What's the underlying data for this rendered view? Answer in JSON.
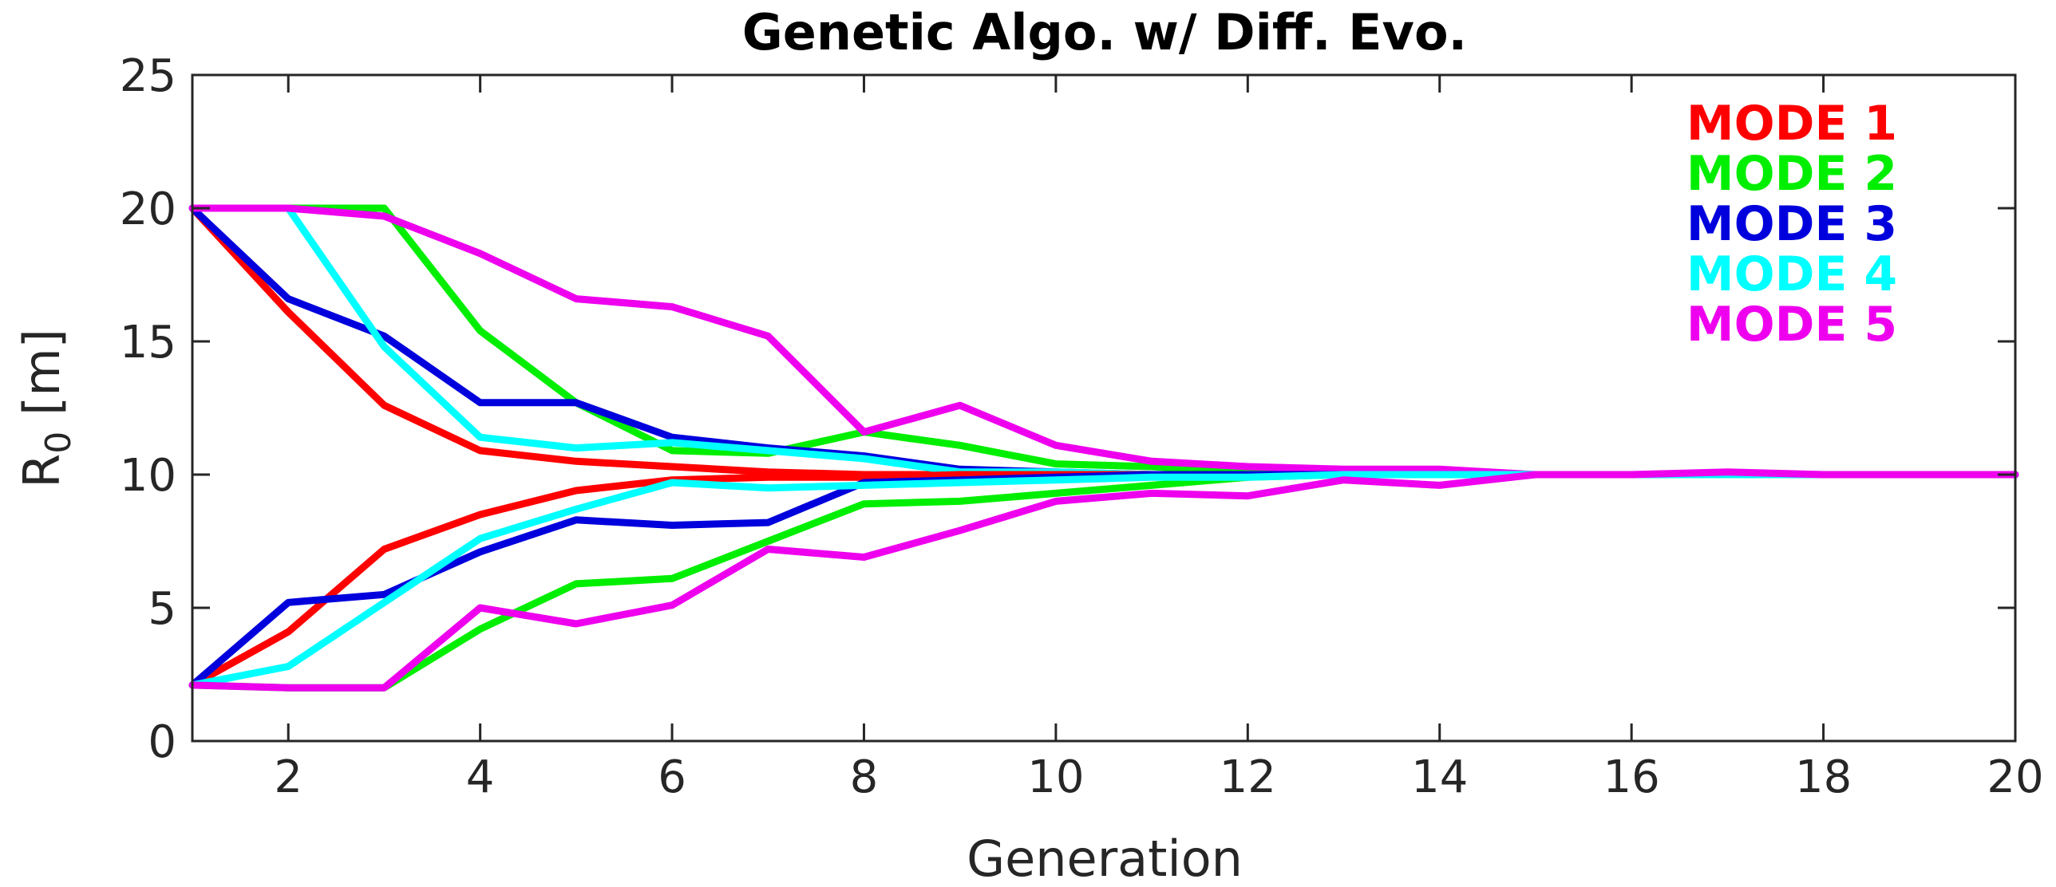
{
  "chart_data": {
    "type": "line",
    "title": "Genetic Algo. w/ Diff. Evo.",
    "xlabel": "Generation",
    "ylabel_main": "R",
    "ylabel_sub": "0",
    "ylabel_unit": " [m]",
    "xlim": [
      1,
      20
    ],
    "ylim": [
      0,
      25
    ],
    "xticks": [
      2,
      4,
      6,
      8,
      10,
      12,
      14,
      16,
      18,
      20
    ],
    "yticks": [
      0,
      5,
      10,
      15,
      20,
      25
    ],
    "grid": false,
    "legend_position": "top-right",
    "x": [
      1,
      2,
      3,
      4,
      5,
      6,
      7,
      8,
      9,
      10,
      11,
      12,
      13,
      14,
      15,
      16,
      17,
      18,
      19,
      20
    ],
    "series": [
      {
        "name": "MODE 1",
        "color": "#ff0000",
        "values": [
          20,
          16.1,
          12.6,
          10.9,
          10.5,
          10.3,
          10.1,
          10.0,
          10.0,
          10.0,
          10.0,
          10.0,
          10.0,
          10.0,
          10.0,
          10.0,
          10.0,
          10.0,
          10.0,
          10.0
        ]
      },
      {
        "name": "MODE 2",
        "color": "#00ee00",
        "values": [
          20,
          20,
          20,
          15.4,
          12.7,
          10.9,
          10.8,
          11.6,
          11.1,
          10.4,
          10.3,
          10.1,
          10.0,
          10.0,
          10.0,
          10.0,
          10.0,
          10.0,
          10.0,
          10.0
        ]
      },
      {
        "name": "MODE 3",
        "color": "#0000dd",
        "values": [
          20,
          16.6,
          15.2,
          12.7,
          12.7,
          11.4,
          11.0,
          10.7,
          10.2,
          10.1,
          10.0,
          10.0,
          10.0,
          10.0,
          10.0,
          10.0,
          10.0,
          10.0,
          10.0,
          10.0
        ]
      },
      {
        "name": "MODE 4",
        "color": "#00ffff",
        "values": [
          20,
          20,
          14.8,
          11.4,
          11.0,
          11.2,
          10.9,
          10.6,
          10.1,
          10.1,
          10.0,
          10.0,
          10.0,
          10.0,
          10.0,
          10.0,
          10.0,
          10.0,
          10.0,
          10.0
        ]
      },
      {
        "name": "MODE 5",
        "color": "#ee00ee",
        "values": [
          20,
          20,
          19.7,
          18.3,
          16.6,
          16.3,
          15.2,
          11.6,
          12.6,
          11.1,
          10.5,
          10.3,
          10.2,
          10.2,
          10.0,
          10.0,
          10.0,
          10.0,
          10.0,
          10.0
        ]
      },
      {
        "name": "MODE 1",
        "color": "#ff0000",
        "values": [
          2.1,
          4.1,
          7.2,
          8.5,
          9.4,
          9.8,
          9.9,
          9.9,
          10.0,
          10.0,
          10.0,
          10.0,
          10.0,
          10.0,
          10.0,
          10.0,
          10.0,
          10.0,
          10.0,
          10.0
        ]
      },
      {
        "name": "MODE 2",
        "color": "#00ee00",
        "values": [
          2.1,
          2.0,
          2.0,
          4.2,
          5.9,
          6.1,
          7.5,
          8.9,
          9.0,
          9.3,
          9.6,
          9.9,
          10.0,
          10.0,
          10.0,
          10.0,
          10.0,
          10.0,
          10.0,
          10.0
        ]
      },
      {
        "name": "MODE 3",
        "color": "#0000dd",
        "values": [
          2.1,
          5.2,
          5.5,
          7.1,
          8.3,
          8.1,
          8.2,
          9.7,
          9.8,
          9.9,
          10.0,
          10.0,
          10.0,
          10.0,
          10.0,
          10.0,
          10.0,
          10.0,
          10.0,
          10.0
        ]
      },
      {
        "name": "MODE 4",
        "color": "#00ffff",
        "values": [
          2.1,
          2.8,
          5.2,
          7.6,
          8.7,
          9.7,
          9.5,
          9.6,
          9.7,
          9.8,
          9.9,
          9.9,
          10.0,
          10.0,
          10.0,
          10.0,
          10.0,
          10.0,
          10.0,
          10.0
        ]
      },
      {
        "name": "MODE 5",
        "color": "#ee00ee",
        "values": [
          2.1,
          2.0,
          2.0,
          5.0,
          4.4,
          5.1,
          7.2,
          6.9,
          7.9,
          9.0,
          9.3,
          9.2,
          9.8,
          9.6,
          10.0,
          10.0,
          10.1,
          10.0,
          10.0,
          10.0
        ]
      }
    ],
    "legend": [
      {
        "label": "MODE 1",
        "color": "#ff0000"
      },
      {
        "label": "MODE 2",
        "color": "#00ee00"
      },
      {
        "label": "MODE 3",
        "color": "#0000dd"
      },
      {
        "label": "MODE 4",
        "color": "#00ffff"
      },
      {
        "label": "MODE 5",
        "color": "#ee00ee"
      }
    ]
  }
}
